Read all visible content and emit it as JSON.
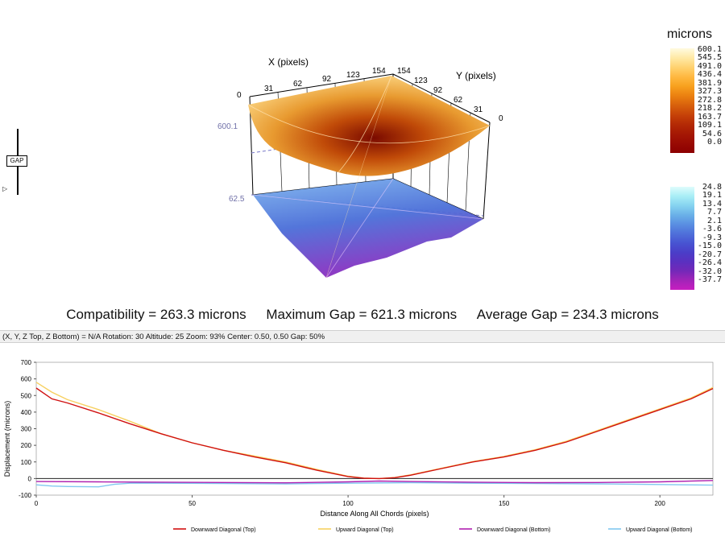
{
  "gap_slider": {
    "label": "GAP"
  },
  "surface3d": {
    "x_axis_label": "X (pixels)",
    "y_axis_label": "Y (pixels)",
    "x_ticks": [
      "0",
      "31",
      "62",
      "92",
      "123",
      "154"
    ],
    "y_ticks": [
      "154",
      "123",
      "92",
      "62",
      "31",
      "0"
    ],
    "z_top_label": "600.1",
    "z_bottom_label": "62.5"
  },
  "colorbar_top": {
    "units": "microns",
    "labels": [
      "600.1",
      "545.5",
      "491.0",
      "436.4",
      "381.9",
      "327.3",
      "272.8",
      "218.2",
      "163.7",
      "109.1",
      "54.6",
      "0.0"
    ],
    "colors": [
      "#fffbe0",
      "#ffe9a6",
      "#ffd270",
      "#ffb840",
      "#f7a01e",
      "#eb8010",
      "#d8600c",
      "#c64208",
      "#b42a05",
      "#a51804",
      "#990a03",
      "#8c0000"
    ]
  },
  "colorbar_bottom": {
    "labels": [
      "24.8",
      "19.1",
      "13.4",
      "7.7",
      "2.1",
      "-3.6",
      "-9.3",
      "-15.0",
      "-20.7",
      "-26.4",
      "-32.0",
      "-37.7"
    ],
    "colors": [
      "#dffcfc",
      "#a8eef6",
      "#86d3f0",
      "#6ab1e8",
      "#5a8fe2",
      "#4f70da",
      "#4854d2",
      "#4a3ec8",
      "#5a30c0",
      "#7428b8",
      "#a224b8",
      "#c81ec0"
    ]
  },
  "stats": {
    "compatibility": "Compatibility = 263.3 microns",
    "max_gap": "Maximum Gap = 621.3 microns",
    "avg_gap": "Average Gap = 234.3 microns"
  },
  "status_bar": "(X, Y, Z Top, Z Bottom) = N/A  Rotation: 30 Altitude: 25  Zoom: 93%  Center: 0.50, 0.50  Gap: 50%",
  "chart_data": {
    "type": "line",
    "xlabel": "Distance Along All Chords (pixels)",
    "ylabel": "Displacement (microns)",
    "xlim": [
      0,
      217
    ],
    "ylim": [
      -100,
      700
    ],
    "x_ticks": [
      "0",
      "50",
      "100",
      "150",
      "200"
    ],
    "y_ticks": [
      "700",
      "600",
      "500",
      "400",
      "300",
      "200",
      "100",
      "0",
      "-100"
    ],
    "legend_position": "bottom",
    "series": [
      {
        "name": "Downward Diagonal (Top)",
        "color": "#d01010",
        "x": [
          0,
          5,
          10,
          20,
          30,
          40,
          50,
          60,
          70,
          80,
          90,
          100,
          105,
          110,
          115,
          120,
          130,
          140,
          150,
          160,
          170,
          180,
          190,
          200,
          210,
          217
        ],
        "y": [
          545,
          480,
          455,
          395,
          330,
          270,
          215,
          170,
          130,
          95,
          50,
          12,
          2,
          0,
          5,
          20,
          60,
          100,
          130,
          170,
          220,
          285,
          350,
          415,
          480,
          542
        ]
      },
      {
        "name": "Upward Diagonal (Top)",
        "color": "#f7d060",
        "x": [
          0,
          5,
          10,
          20,
          30,
          40,
          50,
          60,
          70,
          80,
          90,
          100,
          105,
          110,
          115,
          120,
          130,
          140,
          150,
          160,
          170,
          180,
          190,
          200,
          210,
          217
        ],
        "y": [
          580,
          520,
          475,
          415,
          345,
          270,
          215,
          170,
          135,
          100,
          55,
          14,
          3,
          0,
          6,
          22,
          62,
          102,
          133,
          174,
          225,
          290,
          355,
          420,
          485,
          548
        ]
      },
      {
        "name": "Downward Diagonal (Bottom)",
        "color": "#b020b0",
        "x": [
          0,
          20,
          40,
          60,
          80,
          100,
          110,
          120,
          140,
          160,
          180,
          200,
          217
        ],
        "y": [
          -18,
          -20,
          -22,
          -24,
          -26,
          -20,
          -15,
          -18,
          -22,
          -25,
          -24,
          -20,
          -12
        ]
      },
      {
        "name": "Upward Diagonal (Bottom)",
        "color": "#80c8f0",
        "x": [
          0,
          5,
          10,
          20,
          25,
          30,
          40,
          60,
          80,
          100,
          120,
          140,
          160,
          180,
          200,
          217
        ],
        "y": [
          -38,
          -45,
          -48,
          -50,
          -35,
          -28,
          -28,
          -30,
          -32,
          -28,
          -25,
          -28,
          -30,
          -32,
          -36,
          -40
        ]
      }
    ]
  }
}
